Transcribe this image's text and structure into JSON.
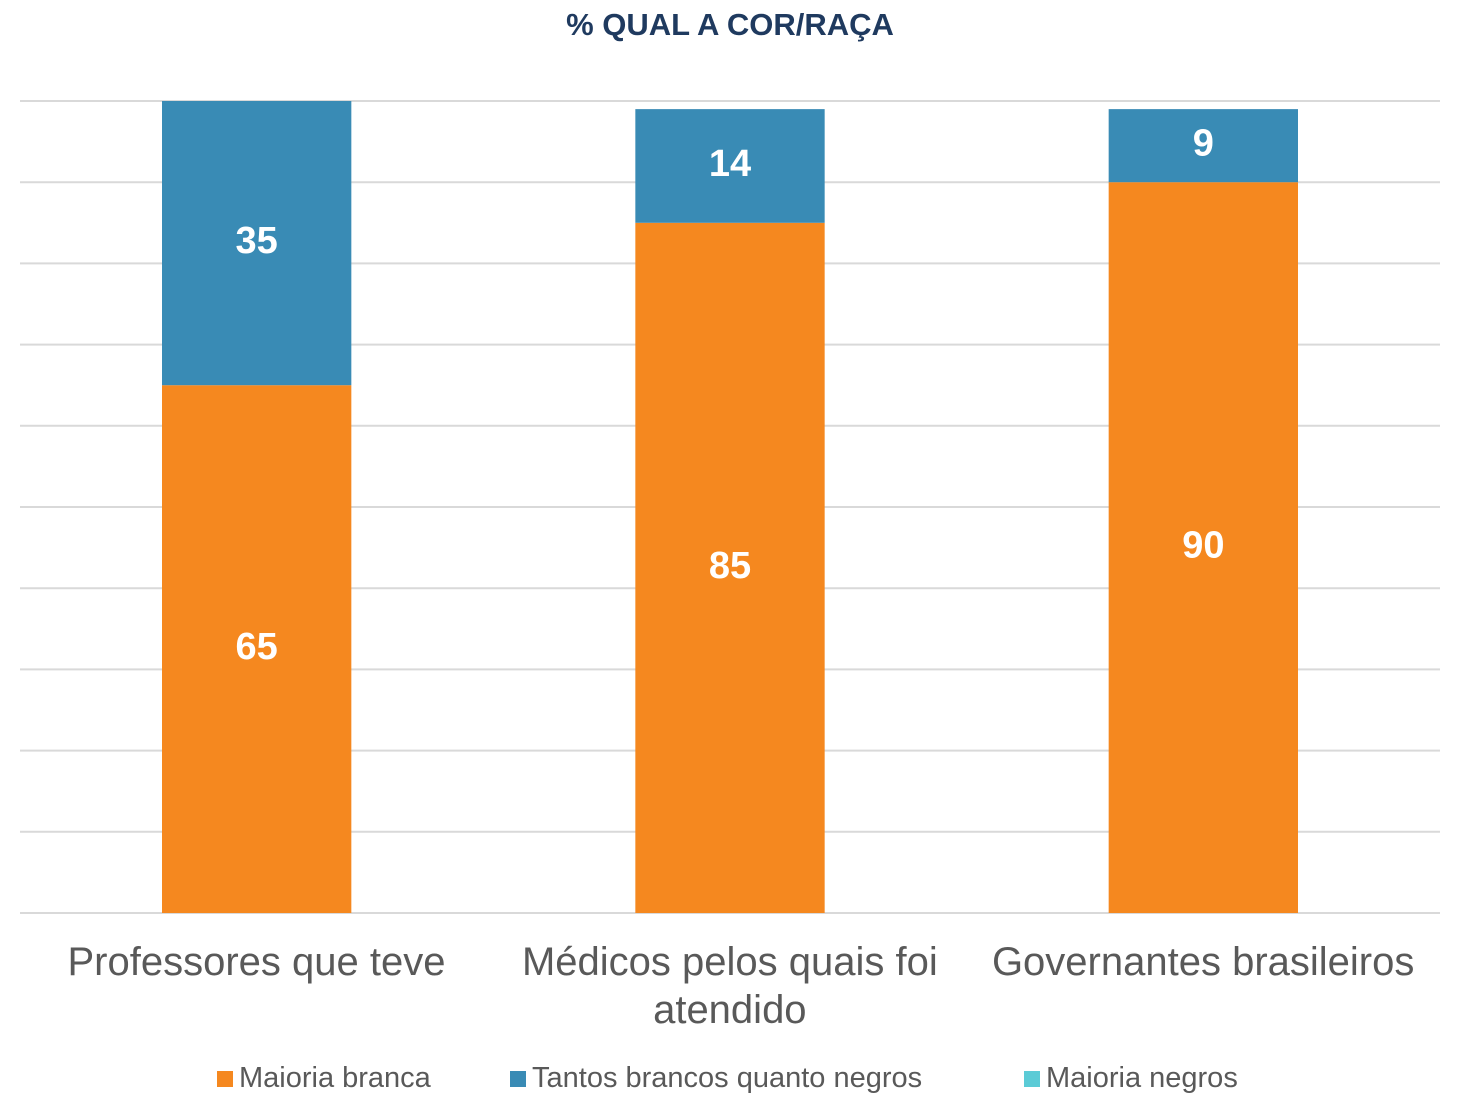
{
  "chart_data": {
    "type": "stacked_bar",
    "title": "% QUAL A COR/RAÇA",
    "categories": [
      "Professores que teve",
      "Médicos pelos quais foi atendido",
      "Governantes brasileiros"
    ],
    "series": [
      {
        "name": "Maioria branca",
        "color": "#F5881F",
        "values": [
          65,
          85,
          90
        ]
      },
      {
        "name": "Tantos brancos quanto negros",
        "color": "#398BB5",
        "values": [
          35,
          14,
          9
        ]
      },
      {
        "name": "Maioria negros",
        "color": "#5BCBD6",
        "values": [
          0,
          0,
          0
        ]
      }
    ],
    "ylim": [
      0,
      100
    ],
    "yticks": [
      0,
      10,
      20,
      30,
      40,
      50,
      60,
      70,
      80,
      90,
      100
    ],
    "grid": true,
    "legend": "bottom"
  }
}
